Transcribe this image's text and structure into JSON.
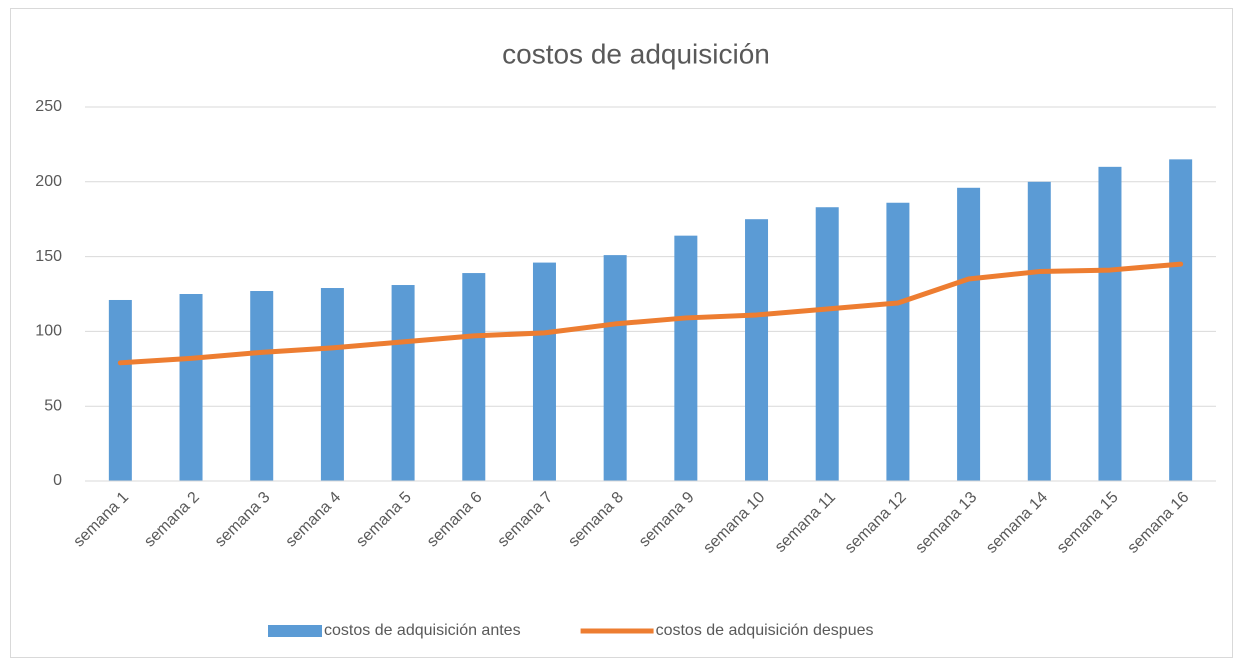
{
  "chart_data": {
    "type": "combo",
    "title": "costos de adquisición",
    "categories": [
      "semana 1",
      "semana 2",
      "semana 3",
      "semana 4",
      "semana 5",
      "semana 6",
      "semana 7",
      "semana 8",
      "semana 9",
      "semana 10",
      "semana 11",
      "semana 12",
      "semana 13",
      "semana 14",
      "semana 15",
      "semana 16"
    ],
    "series": [
      {
        "name": "costos de adquisición antes",
        "type": "bar",
        "color": "#5b9bd5",
        "values": [
          121,
          125,
          127,
          129,
          131,
          139,
          146,
          151,
          164,
          175,
          183,
          186,
          196,
          200,
          210,
          215
        ]
      },
      {
        "name": "costos de adquisición despues",
        "type": "line",
        "color": "#ed7d31",
        "values": [
          79,
          82,
          86,
          89,
          93,
          97,
          99,
          105,
          109,
          111,
          115,
          119,
          135,
          140,
          141,
          145
        ]
      }
    ],
    "ylim": [
      0,
      250
    ],
    "yticks": [
      0,
      50,
      100,
      150,
      200,
      250
    ],
    "grid": true,
    "legend": "bottom"
  }
}
